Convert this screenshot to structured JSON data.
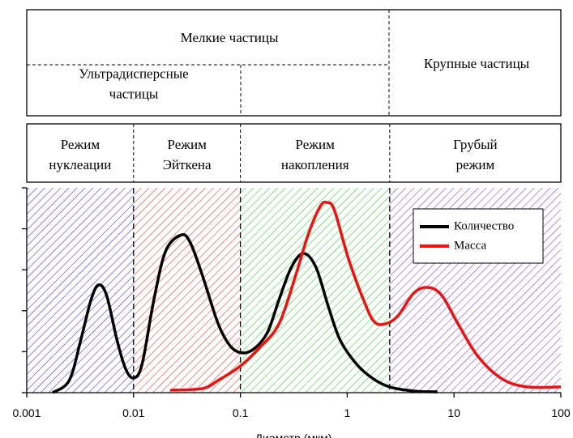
{
  "chart_data": {
    "type": "line",
    "xlabel": "Диаметр (мкм)",
    "xscale": "log",
    "xlim": [
      0.001,
      100
    ],
    "xticks": [
      0.001,
      0.01,
      0.1,
      1,
      10,
      100
    ],
    "ylim": [
      0,
      5
    ],
    "yticks": [
      0,
      1,
      2,
      3,
      4,
      5
    ],
    "legend": "upper right",
    "groups": [
      {
        "label": [
          "Мелкие частицы"
        ]
      },
      {
        "label": [
          "Ультрадисперсные",
          "частицы"
        ]
      },
      {
        "label": [
          "Крупные частицы"
        ]
      }
    ],
    "regions": [
      {
        "label": [
          "Режим",
          "нуклеации"
        ],
        "from": 0.001,
        "to": 0.01,
        "color": "#2a2ad8"
      },
      {
        "label": [
          "Режим",
          "Эйткена"
        ],
        "from": 0.01,
        "to": 0.1,
        "color": "#ee2a2a"
      },
      {
        "label": [
          "Режим",
          "накопления"
        ],
        "from": 0.1,
        "to": 2.5,
        "color": "#22d022"
      },
      {
        "label": [
          "Грубый",
          "режим"
        ],
        "from": 2.5,
        "to": 100,
        "color": "#7b33d6"
      }
    ],
    "series": [
      {
        "name": "Количество",
        "color": "#000000",
        "x": [
          0.00175,
          0.0025,
          0.0032,
          0.004,
          0.0047,
          0.0056,
          0.007,
          0.0084,
          0.01,
          0.012,
          0.0155,
          0.02,
          0.028,
          0.034,
          0.044,
          0.062,
          0.081,
          0.105,
          0.137,
          0.18,
          0.23,
          0.3,
          0.39,
          0.51,
          0.67,
          0.86,
          1.23,
          1.75,
          2.5,
          4.2,
          7
        ],
        "values": [
          0,
          0.3,
          1.28,
          2.27,
          2.63,
          2.37,
          1.28,
          0.59,
          0.36,
          0.69,
          2.27,
          3.46,
          3.85,
          3.66,
          2.87,
          1.68,
          1.13,
          0.97,
          1.09,
          1.48,
          2.27,
          3.06,
          3.4,
          3.06,
          2.08,
          1.28,
          0.69,
          0.34,
          0.14,
          0.04,
          0.02
        ]
      },
      {
        "name": "Масса",
        "color": "#ee1111",
        "x": [
          0.022,
          0.044,
          0.062,
          0.1,
          0.15,
          0.23,
          0.33,
          0.43,
          0.56,
          0.65,
          0.76,
          1.03,
          1.47,
          1.81,
          2.3,
          3,
          4.2,
          5.7,
          7.7,
          10.9,
          16.7,
          28,
          48,
          100
        ],
        "values": [
          0.06,
          0.1,
          0.3,
          0.65,
          1.09,
          1.68,
          2.87,
          3.85,
          4.55,
          4.64,
          4.45,
          3.26,
          2.17,
          1.72,
          1.68,
          1.88,
          2.43,
          2.57,
          2.37,
          1.68,
          0.89,
          0.34,
          0.14,
          0.14
        ]
      }
    ]
  }
}
